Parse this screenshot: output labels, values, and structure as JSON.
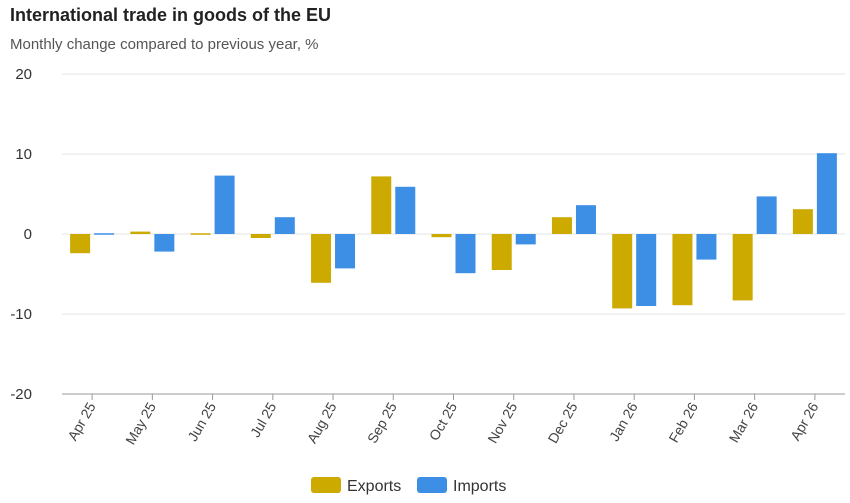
{
  "chart_data": {
    "type": "bar",
    "title": "International trade in goods of the EU",
    "subtitle": "Monthly change compared to previous year, %",
    "categories": [
      "Apr 25",
      "May 25",
      "Jun 25",
      "Jul 25",
      "Aug 25",
      "Sep 25",
      "Oct 25",
      "Nov 25",
      "Dec 25",
      "Jan 26",
      "Feb 26",
      "Mar 26",
      "Apr 26"
    ],
    "series": [
      {
        "name": "Exports",
        "color": "#ccaa00",
        "values": [
          -2.4,
          0.3,
          0.1,
          -0.5,
          -6.1,
          7.2,
          -0.4,
          -4.5,
          2.1,
          -9.3,
          -8.9,
          -8.3,
          3.1
        ]
      },
      {
        "name": "Imports",
        "color": "#3c8fe5",
        "values": [
          -0.1,
          -2.2,
          7.3,
          2.1,
          -4.3,
          5.9,
          -4.9,
          -1.3,
          3.6,
          -9.0,
          -3.2,
          4.7,
          10.1
        ]
      }
    ],
    "y_ticks": [
      20,
      10,
      0,
      -10,
      -20
    ],
    "ylim": [
      -20,
      20
    ],
    "grid": true,
    "legend": "bottom-center"
  }
}
